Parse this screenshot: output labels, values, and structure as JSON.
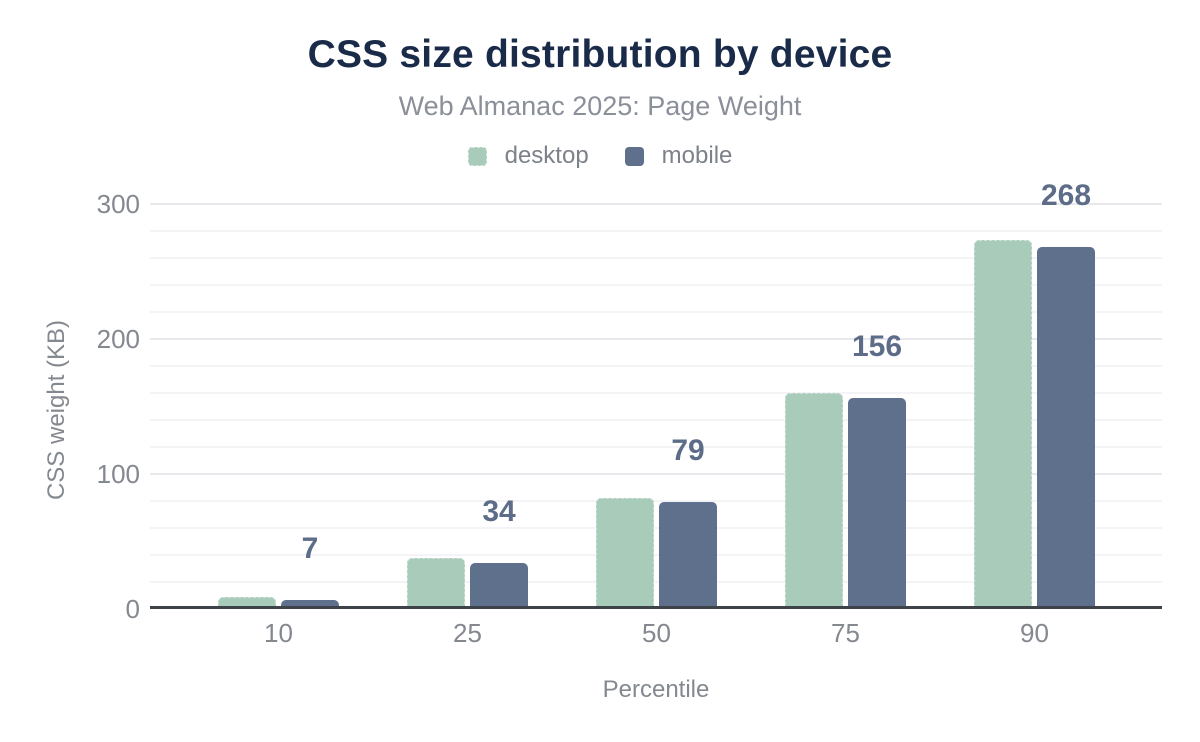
{
  "chart_data": {
    "type": "bar",
    "title": "CSS size distribution by device",
    "subtitle": "Web Almanac 2025: Page Weight",
    "xlabel": "Percentile",
    "ylabel": "CSS weight (KB)",
    "categories": [
      "10",
      "25",
      "50",
      "75",
      "90"
    ],
    "series": [
      {
        "name": "desktop",
        "color": "#a8cbba",
        "values": [
          9,
          38,
          82,
          160,
          273
        ]
      },
      {
        "name": "mobile",
        "color": "#5f708c",
        "values": [
          7,
          34,
          79,
          156,
          268
        ]
      }
    ],
    "value_labels": {
      "labeled_series": "mobile",
      "values": [
        "7",
        "34",
        "79",
        "156",
        "268"
      ],
      "color": "#5c6c89"
    },
    "ylim": [
      0,
      300
    ],
    "yticks": [
      0,
      100,
      200,
      300
    ],
    "minor_gridline_step": 20,
    "grid": "horizontal",
    "legend_position": "top"
  },
  "colors": {
    "background": "#ffffff",
    "title": "#1a2b49",
    "subtitle": "#8b8f99",
    "axis_text": "#84888f",
    "legend_text": "#7d828a",
    "axis_line": "#3e434a",
    "gridline_minor": "#f4f4f7",
    "gridline_major": "#e8e8ed"
  }
}
